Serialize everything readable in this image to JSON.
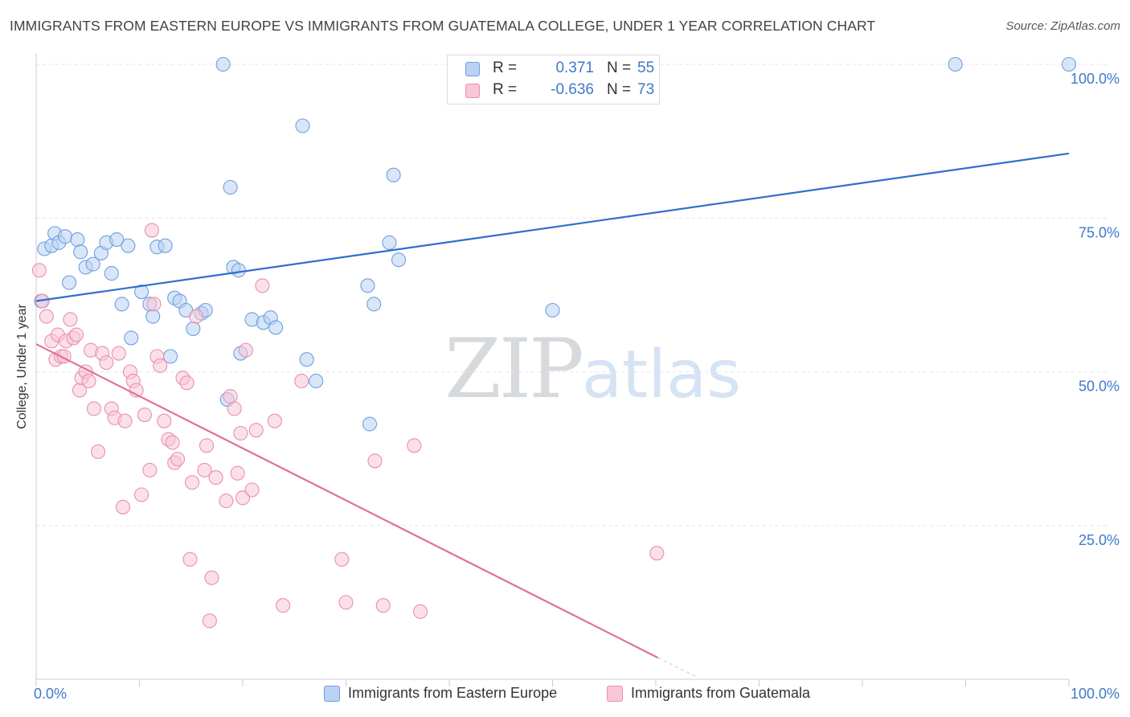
{
  "header": {
    "title": "IMMIGRANTS FROM EASTERN EUROPE VS IMMIGRANTS FROM GUATEMALA COLLEGE, UNDER 1 YEAR CORRELATION CHART",
    "source": "Source: ZipAtlas.com"
  },
  "watermark": {
    "zip": "ZIP",
    "atlas": "atlas"
  },
  "legend": {
    "blue": {
      "r_label": "R =",
      "r_value": "0.371",
      "n_label": "N =",
      "n_value": "55",
      "name": "Immigrants from Eastern Europe"
    },
    "pink": {
      "r_label": "R =",
      "r_value": "-0.636",
      "n_label": "N =",
      "n_value": "73",
      "name": "Immigrants from Guatemala"
    }
  },
  "colors": {
    "blue_fill": "#b9d2f2",
    "blue_stroke": "#6f9fe0",
    "blue_line": "#2f6fcc",
    "pink_fill": "#f8c6d7",
    "pink_stroke": "#ea8fb0",
    "pink_line": "#e0709a",
    "grid": "#e3e6ea",
    "axis_label": "#3f79c9"
  },
  "chart_data": {
    "type": "scatter",
    "title": "IMMIGRANTS FROM EASTERN EUROPE VS IMMIGRANTS FROM GUATEMALA COLLEGE, UNDER 1 YEAR CORRELATION CHART",
    "xlabel": "",
    "ylabel": "College, Under 1 year",
    "xlim": [
      0,
      100
    ],
    "ylim": [
      0,
      100
    ],
    "x_tick_labels": [
      "0.0%",
      "100.0%"
    ],
    "y_tick_labels": [
      "25.0%",
      "50.0%",
      "75.0%",
      "100.0%"
    ],
    "y_ticks": [
      25,
      50,
      75,
      100
    ],
    "legend_position": "top-center",
    "grid": true,
    "series": [
      {
        "name": "Immigrants from Eastern Europe",
        "color": "#6f9fe0",
        "points": [
          [
            0.5,
            61.5
          ],
          [
            0.8,
            70
          ],
          [
            1.5,
            70.5
          ],
          [
            1.8,
            72.5
          ],
          [
            2.2,
            71
          ],
          [
            2.8,
            72
          ],
          [
            3.2,
            64.5
          ],
          [
            4,
            71.5
          ],
          [
            4.3,
            69.5
          ],
          [
            4.8,
            67
          ],
          [
            5.5,
            67.5
          ],
          [
            6.3,
            69.3
          ],
          [
            6.8,
            71
          ],
          [
            7.3,
            66
          ],
          [
            7.8,
            71.5
          ],
          [
            8.3,
            61
          ],
          [
            8.9,
            70.5
          ],
          [
            9.2,
            55.5
          ],
          [
            10.2,
            63
          ],
          [
            11,
            61
          ],
          [
            11.3,
            59
          ],
          [
            11.7,
            70.3
          ],
          [
            12.5,
            70.5
          ],
          [
            13,
            52.5
          ],
          [
            13.4,
            62
          ],
          [
            13.9,
            61.5
          ],
          [
            14.5,
            60
          ],
          [
            15.2,
            57
          ],
          [
            16,
            59.5
          ],
          [
            16.4,
            60
          ],
          [
            18.1,
            100
          ],
          [
            18.5,
            45.5
          ],
          [
            18.8,
            80
          ],
          [
            19.1,
            67
          ],
          [
            19.6,
            66.5
          ],
          [
            19.8,
            53
          ],
          [
            20.9,
            58.5
          ],
          [
            22,
            58
          ],
          [
            22.7,
            58.8
          ],
          [
            23.2,
            57.2
          ],
          [
            25.8,
            90
          ],
          [
            26.2,
            52
          ],
          [
            27.1,
            48.5
          ],
          [
            32.1,
            64
          ],
          [
            32.3,
            41.5
          ],
          [
            32.7,
            61
          ],
          [
            34.2,
            71
          ],
          [
            34.6,
            82
          ],
          [
            35.1,
            68.2
          ],
          [
            50,
            60
          ],
          [
            89,
            100
          ],
          [
            100,
            100
          ]
        ],
        "trend": {
          "x": [
            0,
            100
          ],
          "y": [
            61.5,
            85.5
          ]
        }
      },
      {
        "name": "Immigrants from Guatemala",
        "color": "#ea8fb0",
        "points": [
          [
            0.3,
            66.5
          ],
          [
            0.6,
            61.5
          ],
          [
            1,
            59
          ],
          [
            1.5,
            55
          ],
          [
            1.9,
            52
          ],
          [
            2.1,
            56
          ],
          [
            2.4,
            52.5
          ],
          [
            2.7,
            52.5
          ],
          [
            2.9,
            55
          ],
          [
            3.3,
            58.5
          ],
          [
            3.6,
            55.5
          ],
          [
            3.9,
            56
          ],
          [
            4.2,
            47
          ],
          [
            4.4,
            49
          ],
          [
            4.8,
            50
          ],
          [
            5.1,
            48.5
          ],
          [
            5.3,
            53.5
          ],
          [
            5.6,
            44
          ],
          [
            6,
            37
          ],
          [
            6.4,
            53
          ],
          [
            6.8,
            51.5
          ],
          [
            7.3,
            44
          ],
          [
            7.6,
            42.5
          ],
          [
            8,
            53
          ],
          [
            8.4,
            28
          ],
          [
            8.6,
            42
          ],
          [
            9.1,
            50
          ],
          [
            9.4,
            48.5
          ],
          [
            9.7,
            47
          ],
          [
            10.2,
            30
          ],
          [
            10.5,
            43
          ],
          [
            11,
            34
          ],
          [
            11.2,
            73
          ],
          [
            11.4,
            61
          ],
          [
            11.7,
            52.5
          ],
          [
            12,
            51
          ],
          [
            12.4,
            42
          ],
          [
            12.8,
            39
          ],
          [
            13.2,
            38.5
          ],
          [
            13.4,
            35.2
          ],
          [
            13.7,
            35.8
          ],
          [
            14.2,
            49
          ],
          [
            14.6,
            48.2
          ],
          [
            14.9,
            19.5
          ],
          [
            15.1,
            32
          ],
          [
            15.5,
            59
          ],
          [
            16.3,
            34
          ],
          [
            16.5,
            38
          ],
          [
            16.8,
            9.5
          ],
          [
            17,
            16.5
          ],
          [
            17.4,
            32.8
          ],
          [
            18.4,
            29
          ],
          [
            18.8,
            46
          ],
          [
            19.2,
            44
          ],
          [
            19.5,
            33.5
          ],
          [
            19.8,
            40
          ],
          [
            20,
            29.5
          ],
          [
            20.3,
            53.5
          ],
          [
            20.9,
            30.8
          ],
          [
            21.3,
            40.5
          ],
          [
            21.9,
            64
          ],
          [
            23.1,
            42
          ],
          [
            23.9,
            12
          ],
          [
            25.7,
            48.5
          ],
          [
            29.6,
            19.5
          ],
          [
            30,
            12.5
          ],
          [
            32.8,
            35.5
          ],
          [
            33.6,
            12
          ],
          [
            36.6,
            38
          ],
          [
            37.2,
            11
          ],
          [
            60.1,
            20.5
          ]
        ],
        "trend": {
          "x": [
            0,
            60.2
          ],
          "y": [
            54.5,
            3.5
          ],
          "dashed_extension": {
            "x": [
              60.2,
              63.8
            ],
            "y": [
              3.5,
              0.5
            ]
          }
        }
      }
    ]
  }
}
